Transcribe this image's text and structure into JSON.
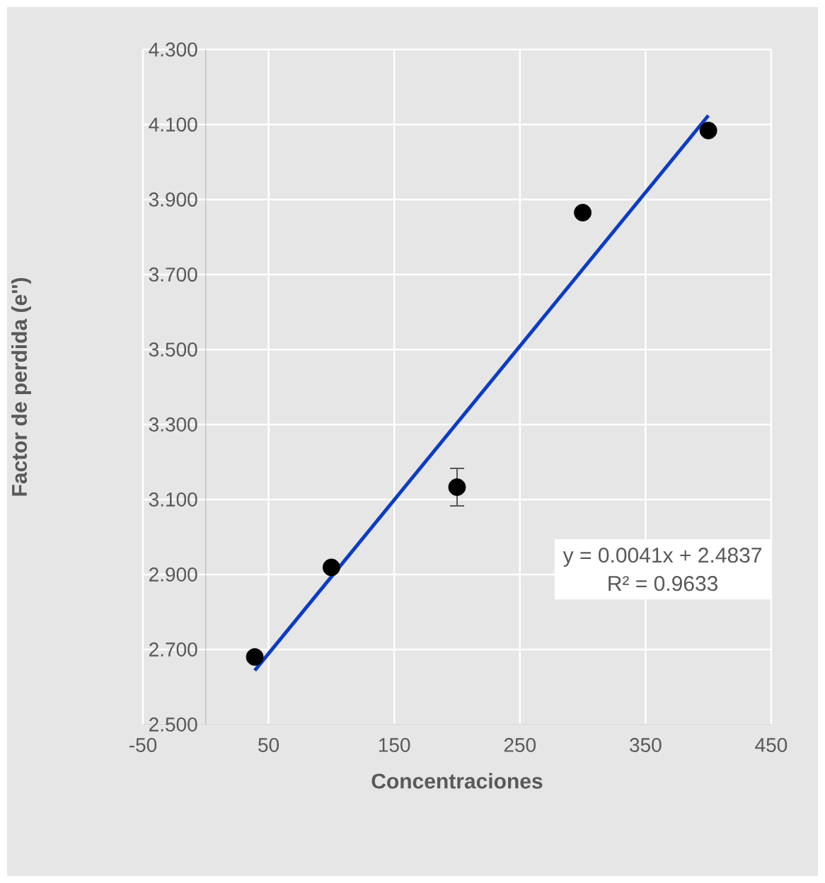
{
  "chart_data": {
    "type": "scatter",
    "xlabel": "Concentraciones",
    "ylabel": "Factor de perdida (e'')",
    "xlim": [
      -50,
      450
    ],
    "xticks": [
      -50,
      50,
      150,
      250,
      350,
      450
    ],
    "ylim": [
      2.5,
      4.3
    ],
    "yticks": [
      {
        "value": 2.5,
        "label": "2.500"
      },
      {
        "value": 2.7,
        "label": "2.700"
      },
      {
        "value": 2.9,
        "label": "2.900"
      },
      {
        "value": 3.1,
        "label": "3.100"
      },
      {
        "value": 3.3,
        "label": "3.300"
      },
      {
        "value": 3.5,
        "label": "3.500"
      },
      {
        "value": 3.7,
        "label": "3.700"
      },
      {
        "value": 3.9,
        "label": "3.900"
      },
      {
        "value": 4.1,
        "label": "4.100"
      },
      {
        "value": 4.3,
        "label": "4.300"
      }
    ],
    "grid": true,
    "series": [
      {
        "marker": "circle",
        "color": "#000000",
        "x": [
          39,
          100,
          200,
          300,
          400
        ],
        "values": [
          2.68,
          2.919,
          3.133,
          3.865,
          4.084
        ],
        "errors": [
          null,
          null,
          0.05,
          null,
          null
        ]
      },
      {
        "type": "line",
        "marker": "none",
        "color": "#0b3cc4",
        "x": [
          39,
          400
        ],
        "values": [
          2.644,
          4.124
        ]
      }
    ],
    "annotations": [
      {
        "text": "y = 0.0041x + 2.4837"
      },
      {
        "text": "R² = 0.9633"
      }
    ]
  }
}
